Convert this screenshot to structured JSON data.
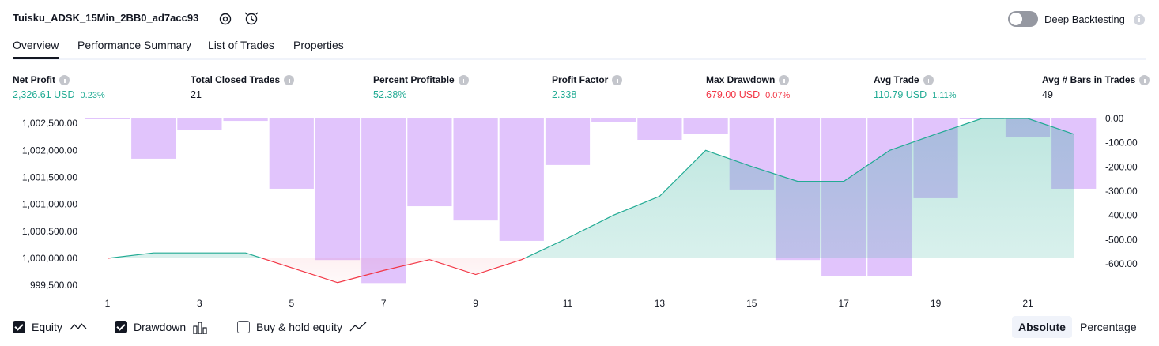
{
  "header": {
    "title": "Tuisku_ADSK_15Min_2BB0_ad7acc93",
    "toggle_label": "Deep Backtesting",
    "toggle_on": false
  },
  "tabs": [
    {
      "label": "Overview",
      "active": true
    },
    {
      "label": "Performance Summary",
      "active": false
    },
    {
      "label": "List of Trades",
      "active": false
    },
    {
      "label": "Properties",
      "active": false
    }
  ],
  "metrics": [
    {
      "label": "Net Profit",
      "value": "2,326.61 USD",
      "percent": "0.23%",
      "color": "#22ab94"
    },
    {
      "label": "Total Closed Trades",
      "value": "21",
      "color": "#131722"
    },
    {
      "label": "Percent Profitable",
      "value": "52.38%",
      "color": "#22ab94"
    },
    {
      "label": "Profit Factor",
      "value": "2.338",
      "color": "#22ab94"
    },
    {
      "label": "Max Drawdown",
      "value": "679.00 USD",
      "percent": "0.07%",
      "color": "#f23645"
    },
    {
      "label": "Avg Trade",
      "value": "110.79 USD",
      "percent": "1.11%",
      "color": "#22ab94"
    },
    {
      "label": "Avg # Bars in Trades",
      "value": "49",
      "color": "#131722"
    }
  ],
  "chart_data": {
    "type": "combo",
    "categories": [
      "1",
      null,
      "3",
      null,
      "5",
      null,
      "7",
      null,
      "9",
      null,
      "11",
      null,
      "13",
      null,
      "15",
      null,
      "17",
      null,
      "19",
      null,
      "21",
      null
    ],
    "series": [
      {
        "name": "Equity",
        "type": "line",
        "color": "#22ab94",
        "negative_color": "#f23645",
        "values": [
          1000000,
          1000100,
          1000100,
          1000100,
          999825,
          999550,
          999775,
          999975,
          999700,
          999975,
          1000375,
          1000800,
          1001150,
          1002000,
          1001700,
          1001425,
          1001425,
          1002000,
          1002300,
          1002590,
          1002590,
          1002300
        ]
      },
      {
        "name": "Drawdown",
        "type": "bar",
        "axis": "y2",
        "color": "#e1c4fc",
        "values": [
          -2,
          -166,
          -46,
          -10,
          -290,
          -584,
          -679,
          -362,
          -421,
          -505,
          -192,
          -16,
          -88,
          -65,
          -293,
          -584,
          -649,
          -649,
          -329,
          0,
          -78,
          -290
        ]
      }
    ],
    "other_legend": [
      {
        "name": "Buy & hold equity",
        "checked": false
      }
    ],
    "ylim": [
      999488,
      1002590
    ],
    "yticks": [
      {
        "value": 1002500,
        "label": "1,002,500.00"
      },
      {
        "value": 1002000,
        "label": "1,002,000.00"
      },
      {
        "value": 1001500,
        "label": "1,001,500.00"
      },
      {
        "value": 1001000,
        "label": "1,001,000.00"
      },
      {
        "value": 1000500,
        "label": "1,000,500.00"
      },
      {
        "value": 1000000,
        "label": "1,000,000.00"
      },
      {
        "value": 999500,
        "label": "999,500.00"
      }
    ],
    "y2lim": [
      -691,
      0
    ],
    "y2ticks": [
      {
        "value": 0,
        "label": "0.00"
      },
      {
        "value": -100,
        "label": "-100.00"
      },
      {
        "value": -200,
        "label": "-200.00"
      },
      {
        "value": -300,
        "label": "-300.00"
      },
      {
        "value": -400,
        "label": "-400.00"
      },
      {
        "value": -500,
        "label": "-500.00"
      },
      {
        "value": -600,
        "label": "-600.00"
      }
    ]
  },
  "view_buttons": [
    {
      "label": "Absolute",
      "active": true
    },
    {
      "label": "Percentage",
      "active": false
    }
  ]
}
